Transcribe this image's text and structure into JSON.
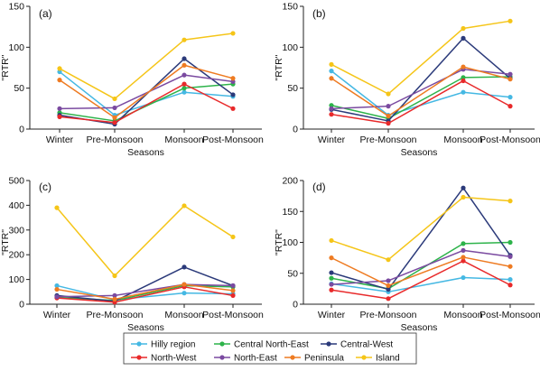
{
  "chart_data": [
    {
      "type": "line",
      "panel_label": "(a)",
      "xlabel": "Seasons",
      "ylabel": "\"RTR\"",
      "categories": [
        "Winter",
        "Pre-Monsoon",
        "Monsoon",
        "Post-Monsoon"
      ],
      "ylim": [
        0,
        150
      ],
      "yticks": [
        0,
        50,
        100,
        150
      ],
      "series": [
        {
          "name": "Hilly region",
          "color": "#45b8e3",
          "values": [
            70,
            17,
            45,
            40
          ]
        },
        {
          "name": "Central North-East",
          "color": "#2db34a",
          "values": [
            20,
            10,
            50,
            55
          ]
        },
        {
          "name": "Central-West",
          "color": "#2b3a7a",
          "values": [
            17,
            6,
            86,
            42
          ]
        },
        {
          "name": "North-West",
          "color": "#e8292a",
          "values": [
            15,
            8,
            55,
            25
          ]
        },
        {
          "name": "North-East",
          "color": "#7a4aa0",
          "values": [
            25,
            26,
            66,
            58
          ]
        },
        {
          "name": "Peninsula",
          "color": "#ee7b22",
          "values": [
            60,
            14,
            78,
            62
          ]
        },
        {
          "name": "Island",
          "color": "#f5c518",
          "values": [
            74,
            37,
            109,
            117
          ]
        }
      ]
    },
    {
      "type": "line",
      "panel_label": "(b)",
      "xlabel": "Seasons",
      "ylabel": "\"RTR\"",
      "categories": [
        "Winter",
        "Pre-Monsoon",
        "Monsoon",
        "Post-Monsoon"
      ],
      "ylim": [
        0,
        150
      ],
      "yticks": [
        0,
        50,
        100,
        150
      ],
      "series": [
        {
          "name": "Hilly region",
          "color": "#45b8e3",
          "values": [
            71,
            17,
            45,
            39
          ]
        },
        {
          "name": "Central North-East",
          "color": "#2db34a",
          "values": [
            29,
            13,
            63,
            64
          ]
        },
        {
          "name": "Central-West",
          "color": "#2b3a7a",
          "values": [
            24,
            10,
            111,
            62
          ]
        },
        {
          "name": "North-West",
          "color": "#e8292a",
          "values": [
            18,
            7,
            59,
            28
          ]
        },
        {
          "name": "North-East",
          "color": "#7a4aa0",
          "values": [
            25,
            28,
            73,
            67
          ]
        },
        {
          "name": "Peninsula",
          "color": "#ee7b22",
          "values": [
            62,
            16,
            76,
            61
          ]
        },
        {
          "name": "Island",
          "color": "#f5c518",
          "values": [
            79,
            43,
            123,
            132
          ]
        }
      ]
    },
    {
      "type": "line",
      "panel_label": "(c)",
      "xlabel": "Seasons",
      "ylabel": "\"RTR\"",
      "categories": [
        "Winter",
        "Pre-Monsoon",
        "Monsoon",
        "Post-Monsoon"
      ],
      "ylim": [
        0,
        500
      ],
      "yticks": [
        0,
        100,
        200,
        300,
        400,
        500
      ],
      "series": [
        {
          "name": "Hilly region",
          "color": "#45b8e3",
          "values": [
            75,
            18,
            45,
            42
          ]
        },
        {
          "name": "Central North-East",
          "color": "#2db34a",
          "values": [
            28,
            15,
            75,
            70
          ]
        },
        {
          "name": "Central-West",
          "color": "#2b3a7a",
          "values": [
            35,
            12,
            150,
            75
          ]
        },
        {
          "name": "North-West",
          "color": "#e8292a",
          "values": [
            25,
            8,
            70,
            35
          ]
        },
        {
          "name": "North-East",
          "color": "#7a4aa0",
          "values": [
            30,
            35,
            80,
            75
          ]
        },
        {
          "name": "Peninsula",
          "color": "#ee7b22",
          "values": [
            60,
            20,
            80,
            55
          ]
        },
        {
          "name": "Island",
          "color": "#f5c518",
          "values": [
            390,
            115,
            398,
            272
          ]
        }
      ]
    },
    {
      "type": "line",
      "panel_label": "(d)",
      "xlabel": "Seasons",
      "ylabel": "\"RTR\"",
      "categories": [
        "Winter",
        "Pre-Monsoon",
        "Monsoon",
        "Post-Monsoon"
      ],
      "ylim": [
        0,
        200
      ],
      "yticks": [
        0,
        50,
        100,
        150,
        200
      ],
      "series": [
        {
          "name": "Hilly region",
          "color": "#45b8e3",
          "values": [
            33,
            20,
            43,
            40
          ]
        },
        {
          "name": "Central North-East",
          "color": "#2db34a",
          "values": [
            42,
            25,
            98,
            100
          ]
        },
        {
          "name": "Central-West",
          "color": "#2b3a7a",
          "values": [
            51,
            24,
            188,
            79
          ]
        },
        {
          "name": "North-West",
          "color": "#e8292a",
          "values": [
            23,
            9,
            70,
            31
          ]
        },
        {
          "name": "North-East",
          "color": "#7a4aa0",
          "values": [
            32,
            38,
            87,
            77
          ]
        },
        {
          "name": "Peninsula",
          "color": "#ee7b22",
          "values": [
            75,
            30,
            76,
            61
          ]
        },
        {
          "name": "Island",
          "color": "#f5c518",
          "values": [
            103,
            72,
            173,
            167
          ]
        }
      ]
    }
  ],
  "legend": {
    "items": [
      {
        "name": "Hilly region",
        "color": "#45b8e3"
      },
      {
        "name": "Central North-East",
        "color": "#2db34a"
      },
      {
        "name": "Central-West",
        "color": "#2b3a7a"
      },
      {
        "name": "North-West",
        "color": "#e8292a"
      },
      {
        "name": "North-East",
        "color": "#7a4aa0"
      },
      {
        "name": "Peninsula",
        "color": "#ee7b22"
      },
      {
        "name": "Island",
        "color": "#f5c518"
      }
    ]
  }
}
